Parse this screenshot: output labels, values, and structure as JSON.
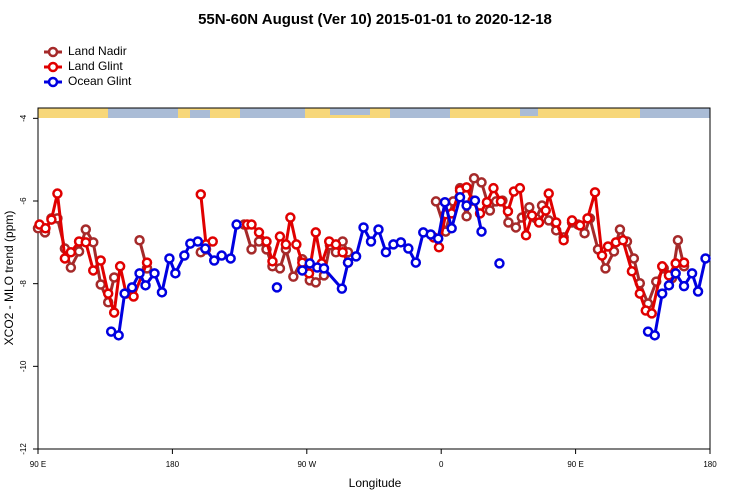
{
  "chart_data": {
    "type": "line",
    "title": "55N-60N August (Ver 10)   2015-01-01 to 2020-12-18",
    "xlabel": "Longitude",
    "ylabel": "XCO2 - MLO trend (ppm)",
    "xlim": [
      90,
      540
    ],
    "ylim": [
      -12,
      -3.75
    ],
    "xticks": [
      {
        "value": 90,
        "label": "90 E"
      },
      180,
      {
        "value": 270,
        "label": "90 W"
      },
      {
        "value": 360,
        "label": "0"
      },
      {
        "value": 450,
        "label": "90 E"
      },
      {
        "value": 540,
        "label": "180"
      }
    ],
    "yticks": [
      -4,
      -6,
      -8,
      -10,
      -12
    ],
    "legend": "top-left",
    "series": [
      {
        "name": "Land Nadir",
        "color": "#a52a2a",
        "x": [
          90,
          94.7,
          99,
          103,
          108,
          112,
          117.5,
          122,
          127,
          132,
          137,
          141,
          null,
          158,
          163,
          null,
          199,
          202.5,
          null,
          228,
          233,
          238,
          243,
          247,
          252,
          256,
          261,
          267,
          272,
          276,
          281.5,
          285.5,
          289.5,
          294,
          297.6,
          null,
          356.5,
          363,
          368,
          372.6,
          377,
          382,
          387,
          392.6,
          396.7,
          401,
          405,
          410,
          414,
          419,
          423.5,
          427.5,
          432,
          437,
          442,
          447.6,
          451.6,
          456,
          459.6,
          465,
          470,
          475.7,
          479.7,
          484.4,
          489,
          493,
          498.5,
          504,
          509,
          514.5,
          518.5,
          522.6
        ],
        "values": [
          -6.66,
          -6.76,
          -6.42,
          -6.42,
          -7.15,
          -7.61,
          -7.22,
          -6.69,
          -7.0,
          -8.02,
          -8.45,
          -7.85,
          null,
          -6.95,
          -7.63,
          null,
          -7.24,
          -7.17,
          null,
          -6.57,
          -7.17,
          -6.98,
          -7.17,
          -7.58,
          -7.63,
          -7.17,
          -7.83,
          -7.41,
          -7.92,
          -7.97,
          -7.8,
          -7.07,
          -7.24,
          -6.98,
          -7.24,
          null,
          -6.01,
          -6.74,
          -6.01,
          -5.69,
          -6.37,
          -5.45,
          -5.55,
          -6.23,
          -6.01,
          -5.99,
          -6.52,
          -6.64,
          -6.4,
          -6.15,
          -6.42,
          -6.11,
          -6.47,
          -6.71,
          -6.88,
          -6.52,
          -6.57,
          -6.78,
          -6.42,
          -7.17,
          -7.63,
          -7.22,
          -6.69,
          -6.98,
          -7.39,
          -7.99,
          -8.48,
          -7.95,
          -7.63,
          -7.87,
          -6.95,
          -7.58
        ]
      },
      {
        "name": "Land Glint",
        "color": "#e00000",
        "x": [
          91,
          95,
          99,
          103,
          108,
          112,
          117.5,
          122,
          127,
          132,
          137,
          141,
          145,
          149,
          154,
          163,
          null,
          199,
          202.5,
          207,
          null,
          230,
          233,
          238,
          243,
          247,
          252,
          256,
          259,
          263,
          267,
          271.5,
          276,
          280,
          285,
          289.5,
          294,
          297.6,
          null,
          355,
          358.5,
          363,
          367,
          372.6,
          377,
          381,
          386,
          390.6,
          395,
          400,
          404.7,
          408.7,
          412.7,
          416.8,
          420.8,
          425.5,
          430,
          432,
          437,
          442,
          447.6,
          453,
          458,
          463,
          467.7,
          471.7,
          477,
          481.7,
          487.7,
          493,
          497,
          501,
          508,
          512.5,
          517,
          522.6
        ],
        "values": [
          -6.57,
          -6.66,
          -6.45,
          -5.82,
          -7.39,
          -7.24,
          -6.98,
          -7.0,
          -7.68,
          -7.44,
          -8.24,
          -8.7,
          -7.58,
          -8.24,
          -8.31,
          -7.49,
          null,
          -5.84,
          -7.05,
          -6.98,
          null,
          -6.57,
          -6.57,
          -6.76,
          -6.98,
          -7.46,
          -6.86,
          -7.05,
          -6.4,
          -7.05,
          -7.49,
          -7.75,
          -6.76,
          -7.51,
          -6.98,
          -7.05,
          -7.24,
          -7.49,
          null,
          -6.88,
          -7.12,
          -6.32,
          -6.3,
          -5.74,
          -5.67,
          -5.99,
          -6.3,
          -6.03,
          -5.69,
          -6.01,
          -6.25,
          -5.77,
          -5.69,
          -6.83,
          -6.35,
          -6.52,
          -6.23,
          -5.82,
          -6.52,
          -6.95,
          -6.47,
          -6.59,
          -6.42,
          -5.79,
          -7.32,
          -7.1,
          -7.0,
          -6.95,
          -7.7,
          -8.24,
          -8.65,
          -8.72,
          -7.58,
          -7.8,
          -7.51,
          -7.49
        ]
      },
      {
        "name": "Ocean Glint",
        "color": "#0000e0",
        "x": [
          139,
          144,
          148,
          153,
          158,
          162,
          168,
          173,
          178,
          182,
          188,
          192,
          197,
          202,
          208,
          213,
          219,
          223,
          null,
          250,
          null,
          267,
          272,
          277,
          281.5,
          293.5,
          297.6,
          303,
          308,
          313,
          318,
          323,
          328,
          333,
          338,
          343,
          348,
          353,
          358,
          362.5,
          367,
          372.6,
          377,
          382.6,
          387,
          null,
          399,
          null,
          498.5,
          503,
          508,
          512.5,
          517,
          522.6,
          528,
          532,
          537
        ],
        "values": [
          -9.16,
          -9.25,
          -8.24,
          -8.09,
          -7.75,
          -8.04,
          -7.75,
          -8.21,
          -7.39,
          -7.75,
          -7.32,
          -7.03,
          -6.98,
          -7.15,
          -7.44,
          -7.32,
          -7.39,
          -6.57,
          null,
          -8.09,
          null,
          -7.68,
          -7.51,
          -7.61,
          -7.63,
          -8.12,
          -7.49,
          -7.34,
          -6.64,
          -6.98,
          -6.69,
          -7.24,
          -7.05,
          -7.0,
          -7.15,
          -7.49,
          -6.76,
          -6.81,
          -6.91,
          -6.03,
          -6.66,
          -5.91,
          -6.11,
          -5.99,
          -6.74,
          null,
          -7.51,
          null,
          -9.16,
          -9.25,
          -8.24,
          -8.04,
          -7.75,
          -8.06,
          -7.75,
          -8.19,
          -7.39
        ]
      }
    ]
  }
}
